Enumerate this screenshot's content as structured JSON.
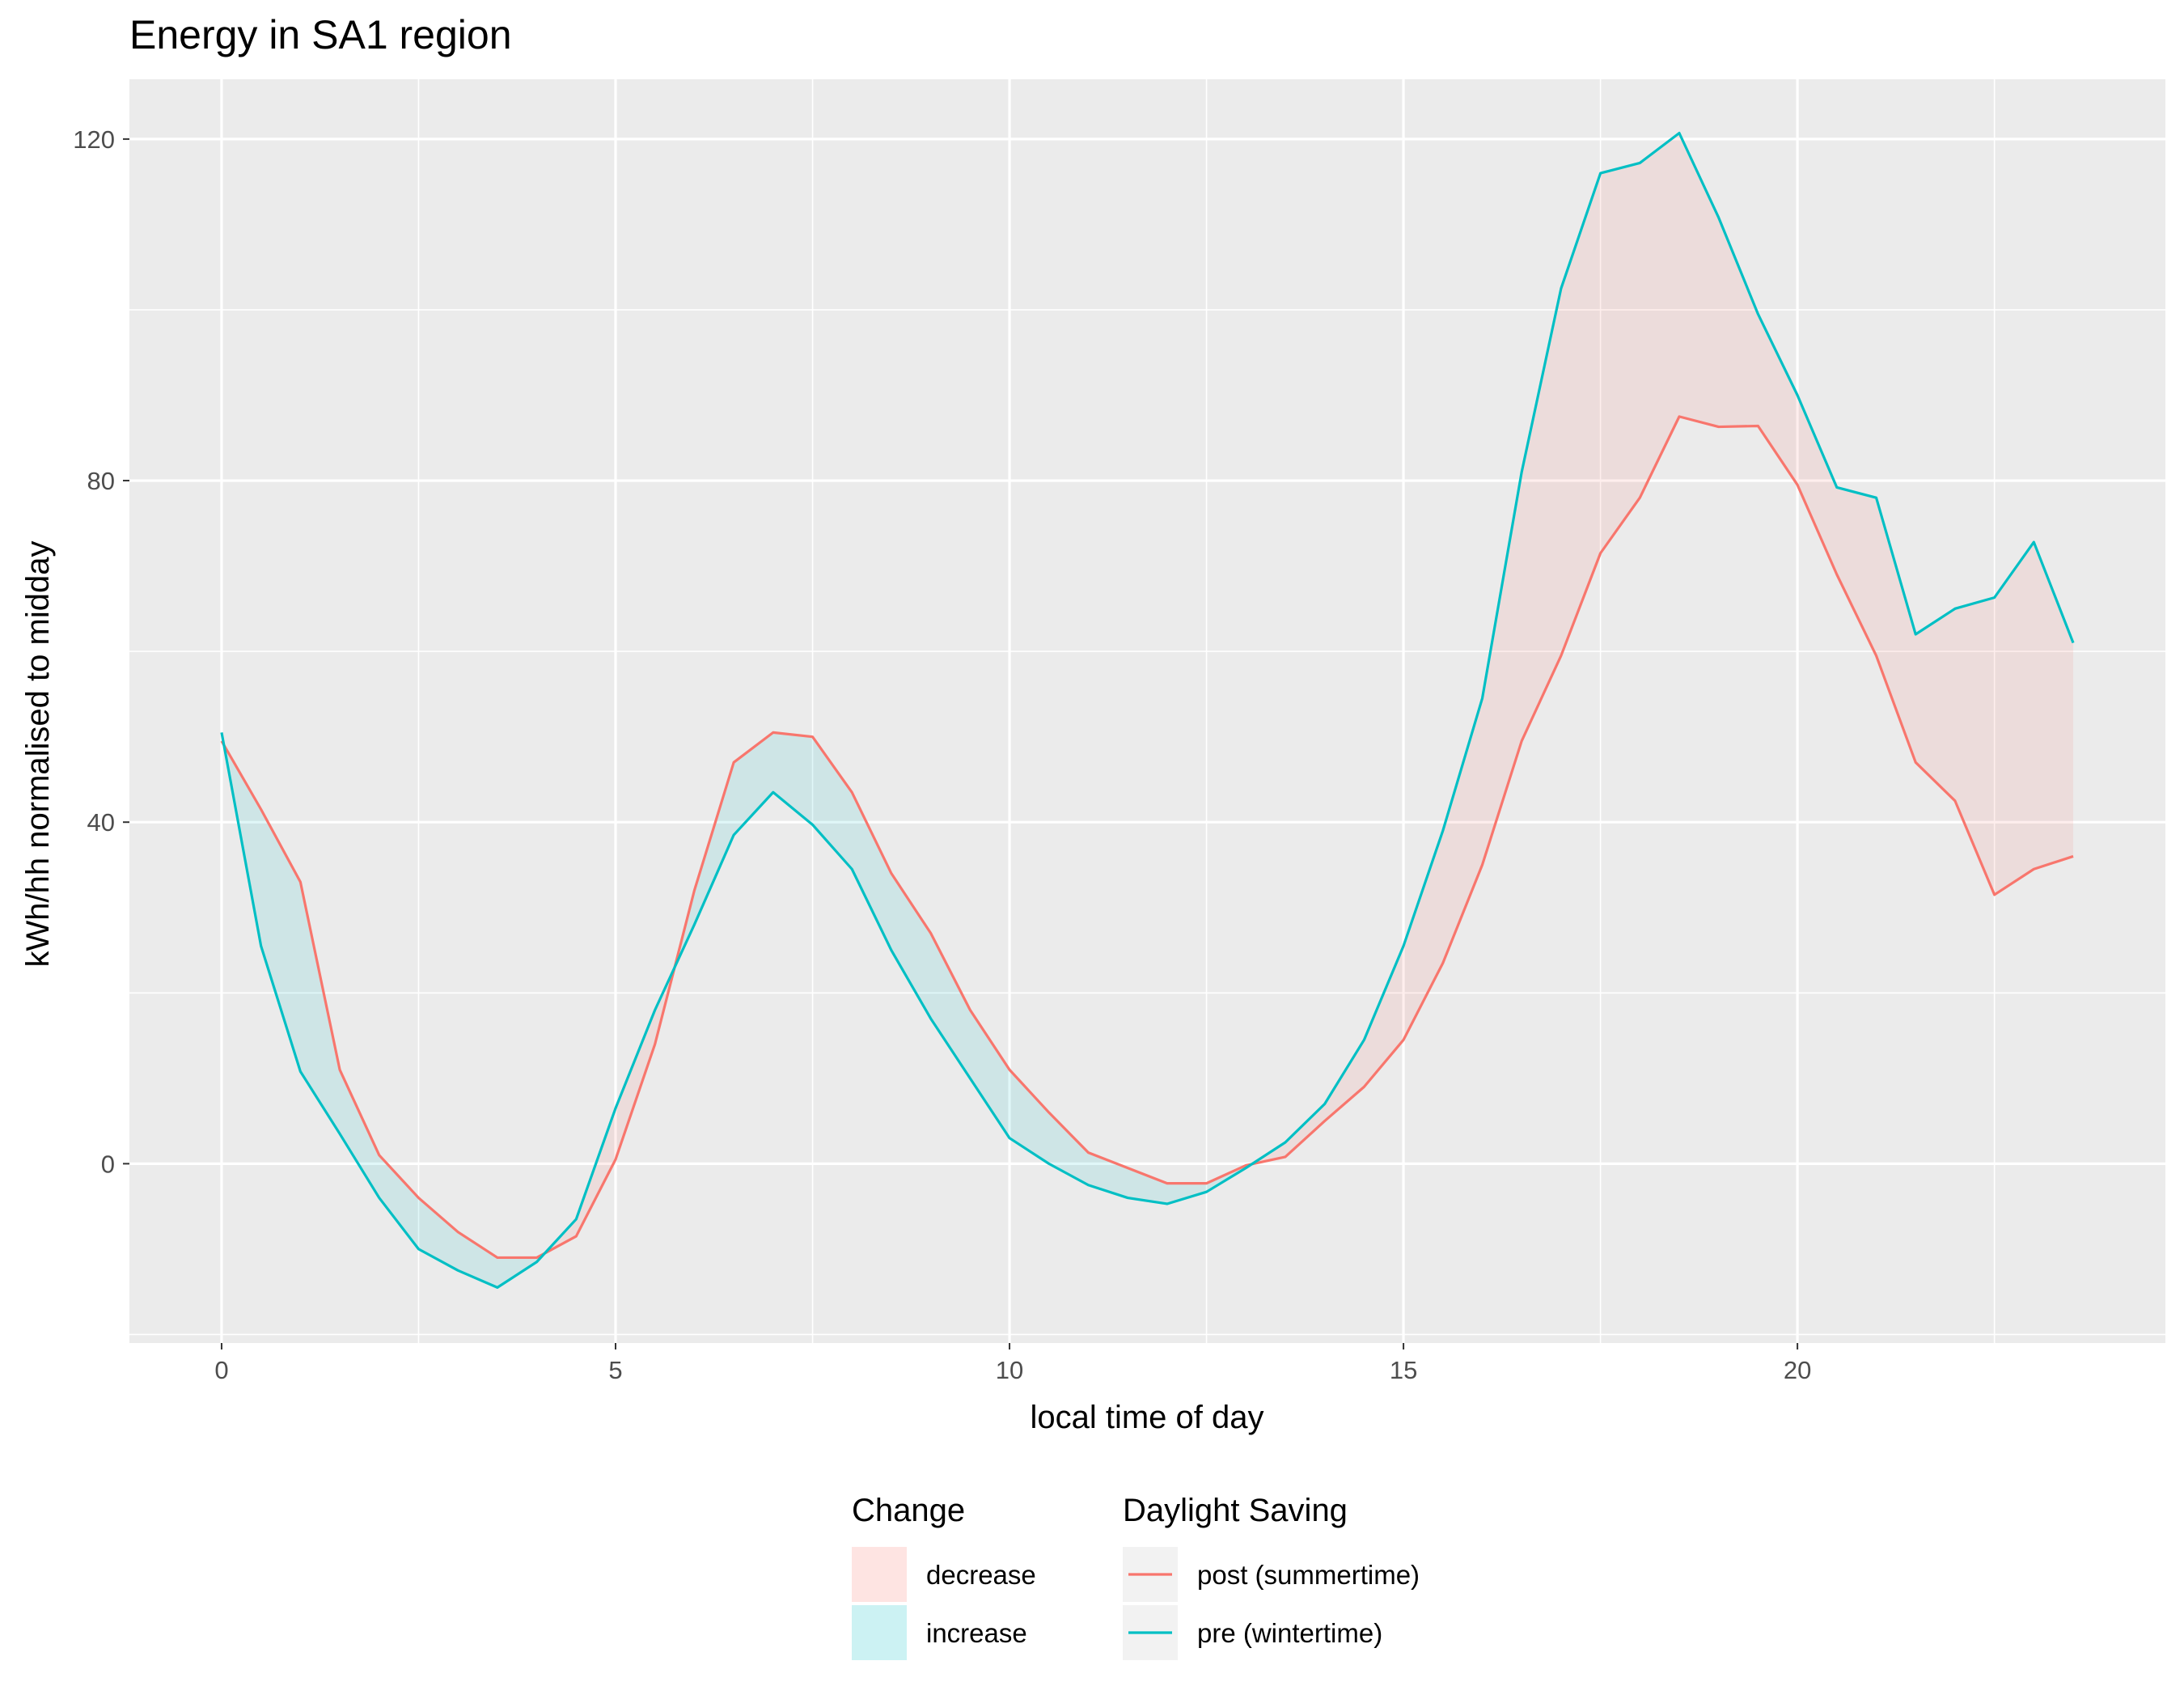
{
  "chart_data": {
    "type": "line",
    "title": "Energy in SA1 region",
    "xlabel": "local time of day",
    "ylabel": "kWh/hh normalised to midday",
    "xlim": [
      -1.17,
      24.67
    ],
    "ylim": [
      -21,
      127
    ],
    "x_ticks": [
      0,
      5,
      10,
      15,
      20
    ],
    "y_ticks": [
      0,
      40,
      80,
      120
    ],
    "grid": true,
    "background": "#ebebeb",
    "legend_placement": "bottom",
    "x": [
      0,
      0.5,
      1,
      1.5,
      2,
      2.5,
      3,
      3.5,
      4,
      4.5,
      5,
      5.5,
      6,
      6.5,
      7,
      7.5,
      8,
      8.5,
      9,
      9.5,
      10,
      10.5,
      11,
      11.5,
      12,
      12.5,
      13,
      13.5,
      14,
      14.5,
      15,
      15.5,
      16,
      16.5,
      17,
      17.5,
      18,
      18.5,
      19,
      19.5,
      20,
      20.5,
      21,
      21.5,
      22,
      22.5,
      23,
      23.5
    ],
    "series": [
      {
        "name": "post (summertime)",
        "color": "#f8766d",
        "values": [
          49.5,
          41.5,
          33,
          11,
          1,
          -4,
          -8,
          -11,
          -11,
          -8.5,
          0.5,
          14,
          32,
          47,
          50.5,
          50,
          43.5,
          34,
          27,
          18,
          11,
          6,
          1.3,
          -0.5,
          -2.3,
          -2.3,
          -0.2,
          0.8,
          5,
          9,
          14.5,
          23.5,
          35,
          49.5,
          59.5,
          71.5,
          78,
          87.5,
          86.3,
          86.4,
          79.5,
          69,
          59.5,
          47,
          42.5,
          31.5,
          34.5,
          36
        ]
      },
      {
        "name": "pre (wintertime)",
        "color": "#00bfc4",
        "values": [
          50.5,
          25.5,
          10.8,
          3.5,
          -4,
          -10,
          -12.5,
          -14.5,
          -11.5,
          -6.5,
          6.5,
          18,
          28,
          38.5,
          43.5,
          39.7,
          34.5,
          25,
          17,
          10,
          3,
          0,
          -2.5,
          -4,
          -4.7,
          -3.3,
          -0.5,
          2.5,
          7,
          14.5,
          25.5,
          39,
          54.5,
          81,
          102.5,
          116,
          117.2,
          120.7,
          110.8,
          99.5,
          90,
          79.2,
          78,
          62,
          65,
          66.3,
          72.8,
          61
        ]
      }
    ],
    "legend": {
      "change": {
        "title": "Change",
        "items": [
          {
            "label": "decrease",
            "color": "#f8766d"
          },
          {
            "label": "increase",
            "color": "#00bfc4"
          }
        ]
      },
      "daylight_saving": {
        "title": "Daylight Saving",
        "items": [
          {
            "label": "post (summertime)",
            "color": "#f8766d"
          },
          {
            "label": "pre (wintertime)",
            "color": "#00bfc4"
          }
        ]
      }
    }
  }
}
